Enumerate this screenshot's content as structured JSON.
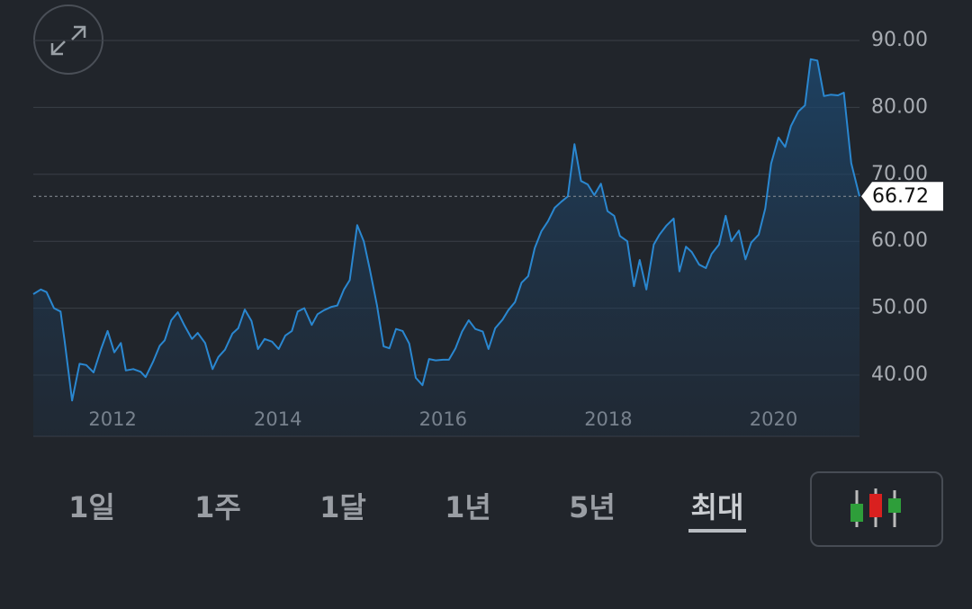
{
  "chart_data": {
    "type": "line",
    "color": "#2a87d0",
    "grid": true,
    "xlim": [
      2011.04,
      2021.04
    ],
    "ylim": [
      30.86,
      96.05
    ],
    "xticks": [
      2012,
      2014,
      2016,
      2018,
      2020
    ],
    "yticks": [
      {
        "value": 40,
        "label": "40.00"
      },
      {
        "value": 50,
        "label": "50.00"
      },
      {
        "value": 60,
        "label": "60.00"
      },
      {
        "value": 70,
        "label": "70.00"
      },
      {
        "value": 80,
        "label": "80.00"
      },
      {
        "value": 90,
        "label": "90.00"
      }
    ],
    "x": [
      2011.04,
      2011.13,
      2011.2,
      2011.29,
      2011.37,
      2011.42,
      2011.51,
      2011.6,
      2011.68,
      2011.77,
      2011.86,
      2011.94,
      2012.02,
      2012.1,
      2012.16,
      2012.25,
      2012.34,
      2012.4,
      2012.49,
      2012.57,
      2012.63,
      2012.71,
      2012.79,
      2012.87,
      2012.96,
      2013.03,
      2013.12,
      2013.21,
      2013.28,
      2013.36,
      2013.45,
      2013.52,
      2013.6,
      2013.68,
      2013.76,
      2013.84,
      2013.93,
      2014.01,
      2014.09,
      2014.17,
      2014.24,
      2014.32,
      2014.41,
      2014.48,
      2014.56,
      2014.65,
      2014.72,
      2014.8,
      2014.87,
      2014.96,
      2015.04,
      2015.11,
      2015.2,
      2015.28,
      2015.35,
      2015.43,
      2015.51,
      2015.59,
      2015.67,
      2015.75,
      2015.83,
      2015.91,
      2016.0,
      2016.07,
      2016.15,
      2016.23,
      2016.31,
      2016.39,
      2016.48,
      2016.55,
      2016.63,
      2016.72,
      2016.79,
      2016.87,
      2016.95,
      2017.03,
      2017.11,
      2017.19,
      2017.27,
      2017.35,
      2017.43,
      2017.51,
      2017.59,
      2017.67,
      2017.75,
      2017.83,
      2017.91,
      2017.99,
      2018.07,
      2018.14,
      2018.23,
      2018.31,
      2018.38,
      2018.46,
      2018.55,
      2018.62,
      2018.7,
      2018.79,
      2018.86,
      2018.94,
      2019.01,
      2019.1,
      2019.18,
      2019.25,
      2019.34,
      2019.42,
      2019.49,
      2019.58,
      2019.66,
      2019.73,
      2019.82,
      2019.9,
      2019.97,
      2020.06,
      2020.14,
      2020.21,
      2020.3,
      2020.38,
      2020.45,
      2020.53,
      2020.61,
      2020.69,
      2020.78,
      2020.85,
      2020.94,
      2021.04
    ],
    "values": [
      52.1,
      52.8,
      52.4,
      50.0,
      49.5,
      45.0,
      36.2,
      41.7,
      41.5,
      40.4,
      43.9,
      46.6,
      43.4,
      44.8,
      40.7,
      40.9,
      40.5,
      39.7,
      42.0,
      44.4,
      45.2,
      48.2,
      49.4,
      47.4,
      45.4,
      46.3,
      44.8,
      40.9,
      42.7,
      43.8,
      46.2,
      47.0,
      49.8,
      48.1,
      43.9,
      45.4,
      45.0,
      43.9,
      45.9,
      46.6,
      49.5,
      50.0,
      47.5,
      49.1,
      49.7,
      50.2,
      50.4,
      52.8,
      54.2,
      62.4,
      60.0,
      56.0,
      50.4,
      44.3,
      44.0,
      46.9,
      46.6,
      44.7,
      39.6,
      38.5,
      42.4,
      42.2,
      42.3,
      42.3,
      44.0,
      46.5,
      48.2,
      46.9,
      46.5,
      43.9,
      47.0,
      48.3,
      49.7,
      50.9,
      53.8,
      54.8,
      59.0,
      61.5,
      63.0,
      65.0,
      65.9,
      66.7,
      74.5,
      69.0,
      68.5,
      66.9,
      68.6,
      64.5,
      63.8,
      60.8,
      60.0,
      53.3,
      57.2,
      52.8,
      59.5,
      61.0,
      62.3,
      63.4,
      55.5,
      59.2,
      58.4,
      56.5,
      56.0,
      58.1,
      59.5,
      63.8,
      60.0,
      61.6,
      57.3,
      59.8,
      61.0,
      64.9,
      71.6,
      75.5,
      74.1,
      77.2,
      79.4,
      80.3,
      87.2,
      87.0,
      81.7,
      81.9,
      81.8,
      82.2,
      71.7,
      66.72
    ]
  },
  "ui": {
    "ranges": [
      "1일",
      "1주",
      "1달",
      "1년",
      "5년",
      "최대"
    ],
    "selected": 5
  }
}
